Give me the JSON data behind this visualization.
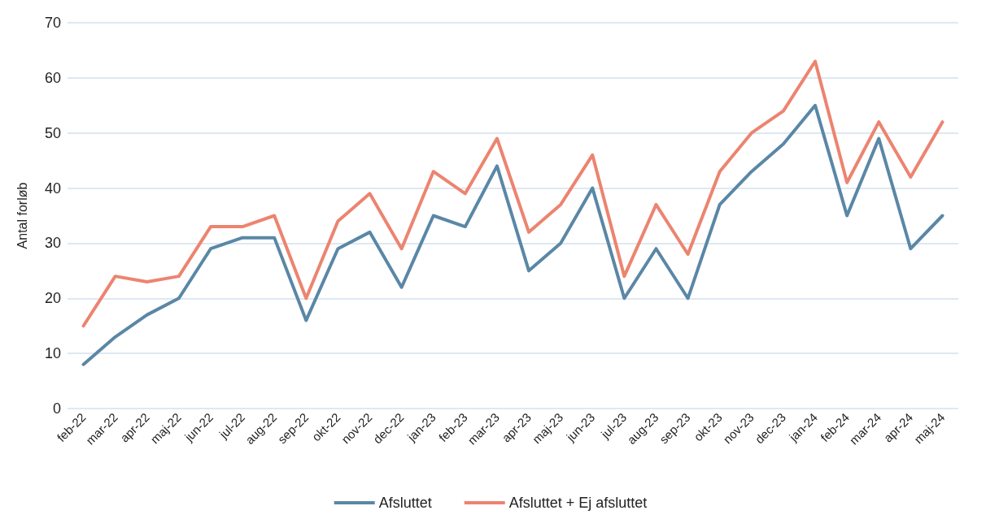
{
  "chart_data": {
    "type": "line",
    "ylabel": "Antal forløb",
    "categories": [
      "feb-22",
      "mar-22",
      "apr-22",
      "maj-22",
      "jun-22",
      "jul-22",
      "aug-22",
      "sep-22",
      "okt-22",
      "nov-22",
      "dec-22",
      "jan-23",
      "feb-23",
      "mar-23",
      "apr-23",
      "maj-23",
      "jun-23",
      "jul-23",
      "aug-23",
      "sep-23",
      "okt-23",
      "nov-23",
      "dec-23",
      "jan-24",
      "feb-24",
      "mar-24",
      "apr-24",
      "maj-24"
    ],
    "series": [
      {
        "name": "Afsluttet",
        "color": "#5a87a6",
        "values": [
          8,
          13,
          17,
          20,
          29,
          31,
          31,
          16,
          29,
          32,
          22,
          35,
          33,
          44,
          25,
          30,
          40,
          20,
          29,
          20,
          37,
          43,
          48,
          55,
          35,
          49,
          29,
          35
        ]
      },
      {
        "name": "Afsluttet + Ej afsluttet",
        "color": "#ec8470",
        "values": [
          15,
          24,
          23,
          24,
          33,
          33,
          35,
          20,
          34,
          39,
          29,
          43,
          39,
          49,
          32,
          37,
          46,
          24,
          37,
          28,
          43,
          50,
          54,
          63,
          41,
          52,
          42,
          52
        ]
      }
    ],
    "ylim": [
      0,
      70
    ],
    "yticks": [
      0,
      10,
      20,
      30,
      40,
      50,
      60,
      70
    ],
    "grid": "y",
    "legend": "bottom",
    "marker": "none",
    "line_style": "solid"
  }
}
